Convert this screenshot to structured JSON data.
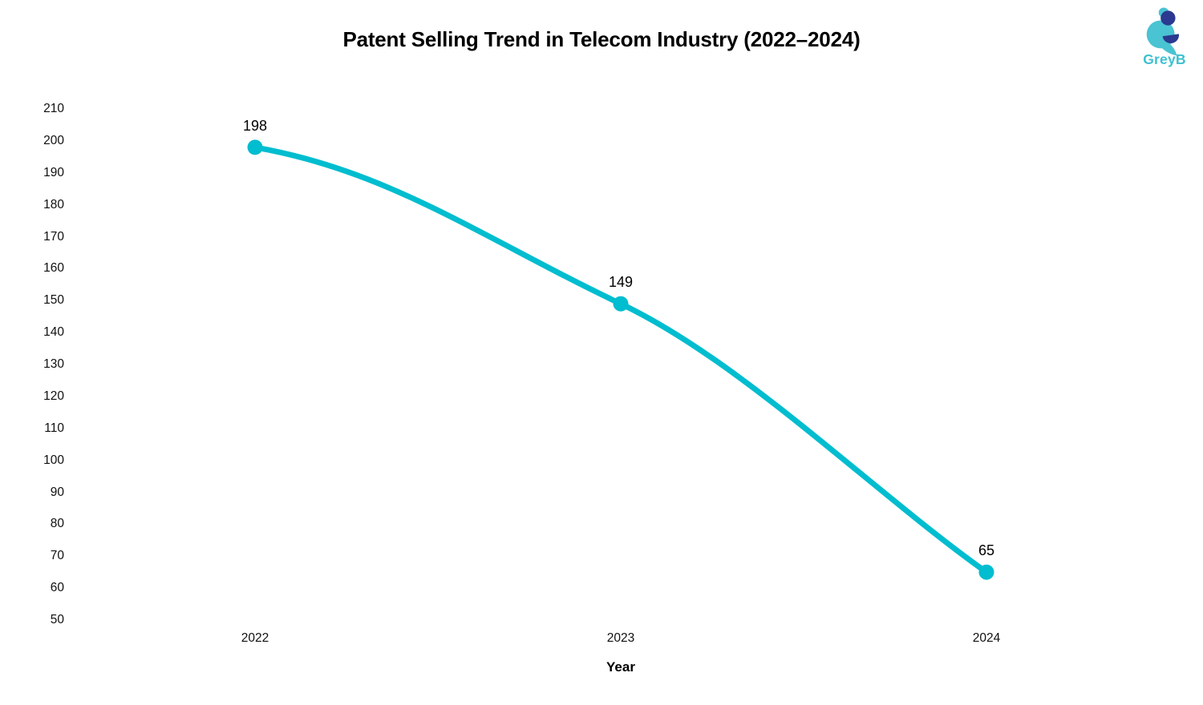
{
  "chart": {
    "title": "Patent Selling Trend in Telecom Industry (2022–2024)",
    "xlabel": "Year"
  },
  "logo": {
    "text": "GreyB",
    "teal": "#4AC3D2",
    "navy": "#2B3990",
    "text_color": "#3EC0D0"
  },
  "colors": {
    "line": "#00BDCF",
    "marker": "#00BDCF",
    "label_text": "#000000",
    "tick_text": "#101010",
    "background": "#FFFFFF"
  },
  "chart_data": {
    "type": "line",
    "title": "Patent Selling Trend in Telecom Industry (2022–2024)",
    "x": [
      "2022",
      "2023",
      "2024"
    ],
    "values": [
      198,
      149,
      65
    ],
    "point_labels": [
      "198",
      "149",
      "65"
    ],
    "xlabel": "Year",
    "ylabel": "",
    "ylim": [
      50,
      210
    ],
    "ytick_step": 10,
    "yticks": [
      210,
      200,
      190,
      180,
      170,
      160,
      150,
      140,
      130,
      120,
      110,
      100,
      90,
      80,
      70,
      60,
      50
    ],
    "grid": false,
    "legend": false,
    "line_color": "#00BDCF",
    "smooth": true
  }
}
